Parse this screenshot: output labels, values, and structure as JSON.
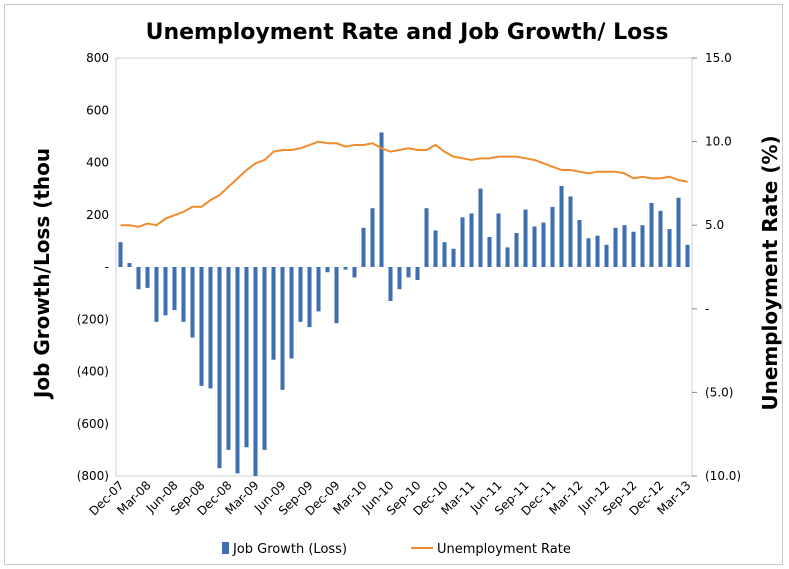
{
  "chart_data": {
    "type": "bar+line",
    "title": "Unemployment Rate and Job Growth/ Loss",
    "ylabel_left": "Job Growth/Loss (thou",
    "ylabel_right": "Unemployment Rate (%)",
    "ylim_left": [
      -800,
      800
    ],
    "ylim_right": [
      -10,
      15
    ],
    "left_ticks": [
      {
        "value": 800,
        "label": "800"
      },
      {
        "value": 600,
        "label": "600"
      },
      {
        "value": 400,
        "label": "400"
      },
      {
        "value": 200,
        "label": "200"
      },
      {
        "value": 0,
        "label": "-"
      },
      {
        "value": -200,
        "label": "(200)"
      },
      {
        "value": -400,
        "label": "(400)"
      },
      {
        "value": -600,
        "label": "(600)"
      },
      {
        "value": -800,
        "label": "(800)"
      }
    ],
    "right_ticks": [
      {
        "value": 15,
        "label": "15.0"
      },
      {
        "value": 10,
        "label": "10.0"
      },
      {
        "value": 5,
        "label": "5.0"
      },
      {
        "value": 0,
        "label": "-"
      },
      {
        "value": -5,
        "label": "(5.0)"
      },
      {
        "value": -10,
        "label": "(10.0)"
      }
    ],
    "x_labels": [
      "Dec-07",
      "Mar-08",
      "Jun-08",
      "Sep-08",
      "Dec-08",
      "Mar-09",
      "Jun-09",
      "Sep-09",
      "Dec-09",
      "Mar-10",
      "Jun-10",
      "Sep-10",
      "Dec-10",
      "Mar-11",
      "Jun-11",
      "Sep-11",
      "Dec-11",
      "Mar-12",
      "Jun-12",
      "Sep-12",
      "Dec-12",
      "Mar-13"
    ],
    "grid": false,
    "legend_position": "bottom",
    "series": [
      {
        "name": "Job Growth (Loss)",
        "type": "bar",
        "color": "#3F6FAE",
        "values": [
          95,
          15,
          -85,
          -80,
          -210,
          -185,
          -165,
          -210,
          -270,
          -455,
          -465,
          -770,
          -700,
          -790,
          -690,
          -800,
          -700,
          -355,
          -470,
          -350,
          -210,
          -230,
          -170,
          -20,
          -215,
          -10,
          -40,
          150,
          225,
          515,
          -130,
          -85,
          -40,
          -50,
          225,
          140,
          95,
          70,
          190,
          205,
          300,
          115,
          205,
          75,
          130,
          220,
          155,
          170,
          230,
          310,
          270,
          180,
          110,
          120,
          85,
          150,
          160,
          135,
          160,
          245,
          215,
          145,
          265,
          85
        ]
      },
      {
        "name": "Unemployment Rate",
        "type": "line",
        "color": "#F08C2E",
        "values": [
          5.0,
          5.0,
          4.9,
          5.1,
          5.0,
          5.4,
          5.6,
          5.8,
          6.1,
          6.1,
          6.5,
          6.8,
          7.3,
          7.8,
          8.3,
          8.7,
          8.9,
          9.4,
          9.5,
          9.5,
          9.6,
          9.8,
          10.0,
          9.9,
          9.9,
          9.7,
          9.8,
          9.8,
          9.9,
          9.6,
          9.4,
          9.5,
          9.6,
          9.5,
          9.5,
          9.8,
          9.4,
          9.1,
          9.0,
          8.9,
          9.0,
          9.0,
          9.1,
          9.1,
          9.1,
          9.0,
          8.9,
          8.7,
          8.5,
          8.3,
          8.3,
          8.2,
          8.1,
          8.2,
          8.2,
          8.2,
          8.1,
          7.8,
          7.9,
          7.8,
          7.8,
          7.9,
          7.7,
          7.6
        ]
      }
    ]
  }
}
